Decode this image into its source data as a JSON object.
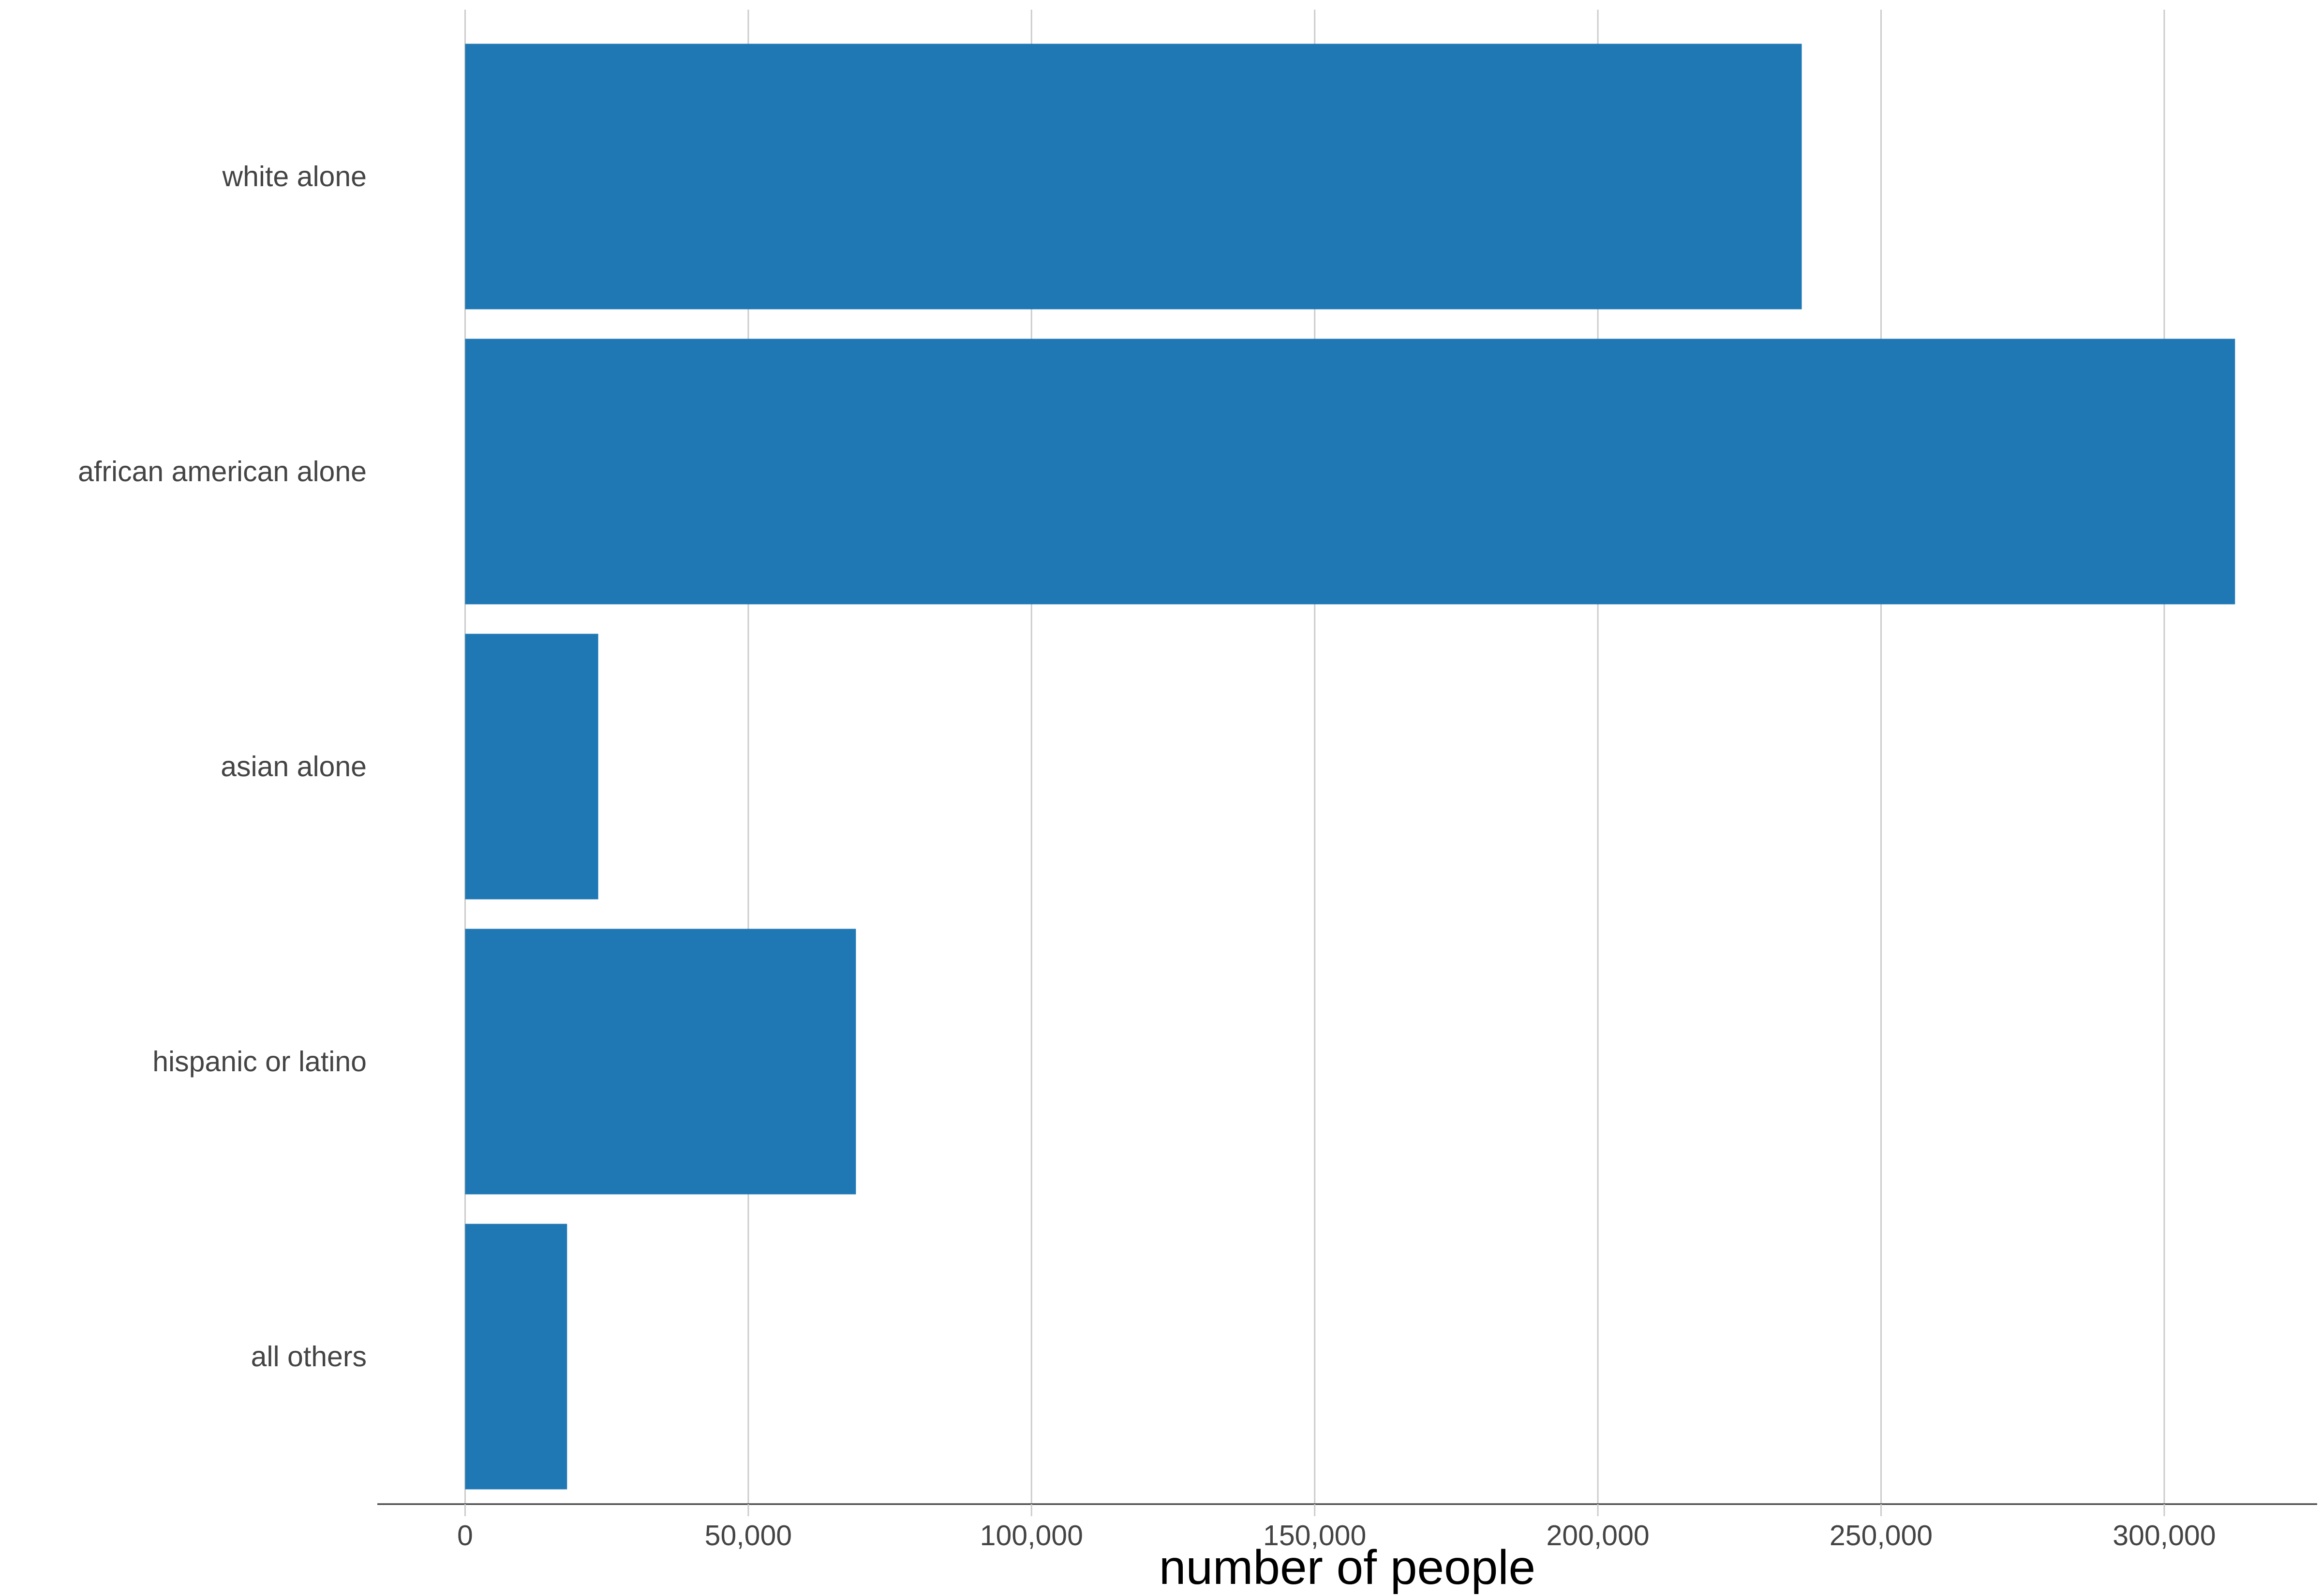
{
  "chart_data": {
    "type": "bar",
    "orientation": "horizontal",
    "categories": [
      "white alone",
      "african american alone",
      "asian alone",
      "hispanic or latino",
      "all others"
    ],
    "values": [
      236000,
      312500,
      23500,
      69000,
      18000
    ],
    "xlabel": "number of people",
    "ylabel": "",
    "xlim": [
      -15500,
      327000
    ],
    "xticks": [
      0,
      50000,
      100000,
      150000,
      200000,
      250000,
      300000
    ],
    "xtick_labels": [
      "0",
      "50,000",
      "100,000",
      "150,000",
      "200,000",
      "250,000",
      "300,000"
    ],
    "grid": "vertical major",
    "legend": "none",
    "bar_color": "#1f78b4"
  }
}
